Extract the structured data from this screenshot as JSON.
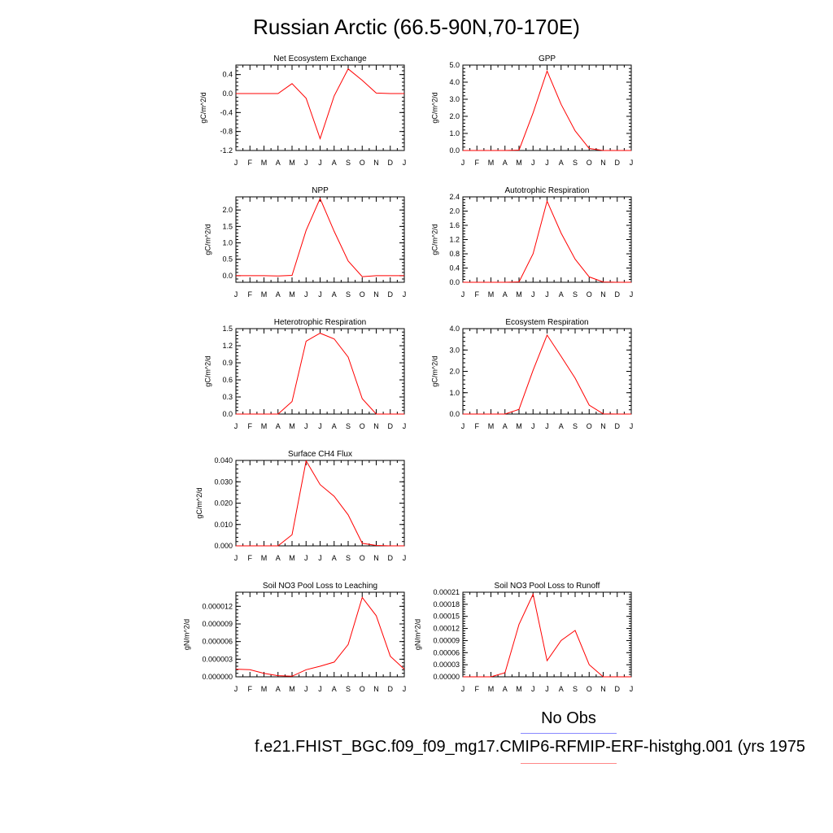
{
  "figure": {
    "title": "Russian Arctic (66.5-90N,70-170E)",
    "legend": {
      "obs_label": "No Obs",
      "obs_color": "#8888ff",
      "model_color": "#ff8888"
    },
    "case_label": "f.e21.FHIST_BGC.f09_f09_mg17.CMIP6-RFMIP-ERF-histghg.001 (yrs 1975"
  },
  "chart_data": [
    {
      "type": "line",
      "title": "Net Ecosystem Exchange",
      "ylabel": "gC/m^2/d",
      "categories": [
        "J",
        "F",
        "M",
        "A",
        "M",
        "J",
        "J",
        "A",
        "S",
        "O",
        "N",
        "D",
        "J"
      ],
      "ylim": [
        -1.2,
        0.6
      ],
      "ticks": [
        0.4,
        0.0,
        -0.4,
        -0.8,
        -1.2
      ],
      "tick_labels": [
        "0.4",
        "0.0",
        "-0.4",
        "-0.8",
        "-1.2"
      ],
      "series": [
        {
          "color": "#ff0000",
          "values": [
            0.0,
            0.0,
            0.0,
            0.0,
            0.21,
            -0.1,
            -0.95,
            -0.05,
            0.52,
            0.28,
            0.01,
            0.0,
            0.0
          ]
        }
      ]
    },
    {
      "type": "line",
      "title": "GPP",
      "ylabel": "gC/m^2/d",
      "categories": [
        "J",
        "F",
        "M",
        "A",
        "M",
        "J",
        "J",
        "A",
        "S",
        "O",
        "N",
        "D",
        "J"
      ],
      "ylim": [
        0,
        5.0
      ],
      "ticks": [
        5.0,
        4.0,
        3.0,
        2.0,
        1.0,
        0.0
      ],
      "tick_labels": [
        "5.0",
        "4.0",
        "3.0",
        "2.0",
        "1.0",
        "0.0"
      ],
      "series": [
        {
          "color": "#ff0000",
          "values": [
            0.0,
            0.0,
            0.0,
            0.0,
            0.02,
            2.2,
            4.65,
            2.7,
            1.15,
            0.12,
            0.0,
            0.0,
            0.0
          ]
        }
      ]
    },
    {
      "type": "line",
      "title": "NPP",
      "ylabel": "gC/m^2/d",
      "categories": [
        "J",
        "F",
        "M",
        "A",
        "M",
        "J",
        "J",
        "A",
        "S",
        "O",
        "N",
        "D",
        "J"
      ],
      "ylim": [
        -0.2,
        2.4
      ],
      "ticks": [
        2.0,
        1.5,
        1.0,
        0.5,
        0.0
      ],
      "tick_labels": [
        "2.0",
        "1.5",
        "1.0",
        "0.5",
        "0.0"
      ],
      "series": [
        {
          "color": "#ff0000",
          "values": [
            0.0,
            0.0,
            0.0,
            -0.01,
            0.01,
            1.38,
            2.35,
            1.35,
            0.45,
            -0.03,
            0.0,
            0.0,
            0.0
          ]
        }
      ]
    },
    {
      "type": "line",
      "title": "Autotrophic Respiration",
      "ylabel": "gC/m^2/d",
      "categories": [
        "J",
        "F",
        "M",
        "A",
        "M",
        "J",
        "J",
        "A",
        "S",
        "O",
        "N",
        "D",
        "J"
      ],
      "ylim": [
        0,
        2.4
      ],
      "ticks": [
        2.4,
        2.0,
        1.6,
        1.2,
        0.8,
        0.4,
        0.0
      ],
      "tick_labels": [
        "2.4",
        "2.0",
        "1.6",
        "1.2",
        "0.8",
        "0.4",
        "0.0"
      ],
      "series": [
        {
          "color": "#ff0000",
          "values": [
            0.0,
            0.0,
            0.0,
            0.0,
            0.01,
            0.8,
            2.28,
            1.38,
            0.65,
            0.15,
            0.01,
            0.0,
            0.0
          ]
        }
      ]
    },
    {
      "type": "line",
      "title": "Heterotrophic Respiration",
      "ylabel": "gC/m^2/d",
      "categories": [
        "J",
        "F",
        "M",
        "A",
        "M",
        "J",
        "J",
        "A",
        "S",
        "O",
        "N",
        "D",
        "J"
      ],
      "ylim": [
        0,
        1.5
      ],
      "ticks": [
        1.5,
        1.2,
        0.9,
        0.6,
        0.3,
        0.0
      ],
      "tick_labels": [
        "1.5",
        "1.2",
        "0.9",
        "0.6",
        "0.3",
        "0.0"
      ],
      "series": [
        {
          "color": "#ff0000",
          "values": [
            0.0,
            0.0,
            0.0,
            0.0,
            0.22,
            1.28,
            1.42,
            1.32,
            1.0,
            0.27,
            0.0,
            0.0,
            0.0
          ]
        }
      ]
    },
    {
      "type": "line",
      "title": "Ecosystem Respiration",
      "ylabel": "gC/m^2/d",
      "categories": [
        "J",
        "F",
        "M",
        "A",
        "M",
        "J",
        "J",
        "A",
        "S",
        "O",
        "N",
        "D",
        "J"
      ],
      "ylim": [
        0,
        4.0
      ],
      "ticks": [
        4.0,
        3.0,
        2.0,
        1.0,
        0.0
      ],
      "tick_labels": [
        "4.0",
        "3.0",
        "2.0",
        "1.0",
        "0.0"
      ],
      "series": [
        {
          "color": "#ff0000",
          "values": [
            0.0,
            0.0,
            0.0,
            0.0,
            0.22,
            2.05,
            3.7,
            2.7,
            1.68,
            0.42,
            0.01,
            0.0,
            0.0
          ]
        }
      ]
    },
    {
      "type": "line",
      "title": "Surface CH4 Flux",
      "ylabel": "gC/m^2/d",
      "categories": [
        "J",
        "F",
        "M",
        "A",
        "M",
        "J",
        "J",
        "A",
        "S",
        "O",
        "N",
        "D",
        "J"
      ],
      "ylim": [
        0,
        0.04
      ],
      "ticks": [
        0.04,
        0.03,
        0.02,
        0.01,
        0.0
      ],
      "tick_labels": [
        "0.040",
        "0.030",
        "0.020",
        "0.010",
        "0.000"
      ],
      "series": [
        {
          "color": "#ff0000",
          "values": [
            0.0,
            0.0,
            0.0,
            0.0,
            0.0052,
            0.0398,
            0.0287,
            0.0232,
            0.0145,
            0.0012,
            0.0002,
            0.0,
            0.0
          ]
        }
      ]
    },
    {
      "type": "line",
      "title": "Soil NO3 Pool Loss to Leaching",
      "ylabel": "gN/m^2/d",
      "categories": [
        "J",
        "F",
        "M",
        "A",
        "M",
        "J",
        "J",
        "A",
        "S",
        "O",
        "N",
        "D",
        "J"
      ],
      "ylim": [
        0,
        1.44e-05
      ],
      "ticks": [
        1.2e-05,
        9e-06,
        6e-06,
        3e-06,
        0.0
      ],
      "tick_labels": [
        "0.000012",
        "0.000009",
        "0.000006",
        "0.000003",
        "0.000000"
      ],
      "series": [
        {
          "color": "#ff0000",
          "values": [
            1.3e-06,
            1.2e-06,
            6e-07,
            2e-07,
            1e-07,
            1.2e-06,
            1.8e-06,
            2.5e-06,
            5.5e-06,
            1.35e-05,
            1.04e-05,
            3.5e-06,
            1.3e-06
          ]
        }
      ]
    },
    {
      "type": "line",
      "title": "Soil NO3 Pool Loss to Runoff",
      "ylabel": "gN/m^2/d",
      "categories": [
        "J",
        "F",
        "M",
        "A",
        "M",
        "J",
        "J",
        "A",
        "S",
        "O",
        "N",
        "D",
        "J"
      ],
      "ylim": [
        0,
        0.00021
      ],
      "ticks": [
        0.00021,
        0.00018,
        0.00015,
        0.00012,
        9e-05,
        6e-05,
        3e-05,
        0.0
      ],
      "tick_labels": [
        "0.00021",
        "0.00018",
        "0.00015",
        "0.00012",
        "0.00009",
        "0.00006",
        "0.00003",
        "0.00000"
      ],
      "series": [
        {
          "color": "#ff0000",
          "values": [
            0.0,
            0.0,
            0.0,
            1e-05,
            0.00013,
            0.000205,
            4e-05,
            9e-05,
            0.000115,
            3e-05,
            0.0,
            0.0,
            0.0
          ]
        }
      ]
    }
  ]
}
